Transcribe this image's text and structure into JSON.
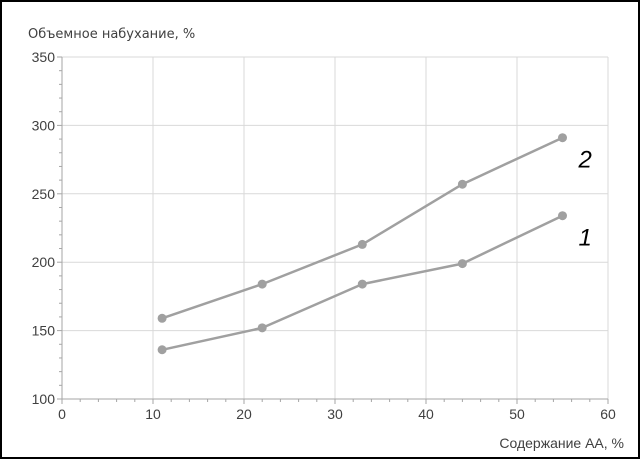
{
  "chart_data": {
    "type": "line",
    "ylabel": "Объемное набухание, %",
    "xlabel": "Содержание АА, %",
    "xlim": [
      0,
      60
    ],
    "ylim": [
      100,
      350
    ],
    "x_ticks": [
      "0",
      "10",
      "20",
      "30",
      "40",
      "50",
      "60"
    ],
    "y_ticks": [
      "100",
      "150",
      "200",
      "250",
      "300",
      "350"
    ],
    "grid": true,
    "colors": {
      "series": "#a0a0a0",
      "grid": "#d9d9d9",
      "axis": "#a6a6a6"
    },
    "series": [
      {
        "name": "2",
        "x": [
          11,
          22,
          33,
          44,
          55
        ],
        "y": [
          159,
          184,
          213,
          257,
          291
        ]
      },
      {
        "name": "1",
        "x": [
          11,
          22,
          33,
          44,
          55
        ],
        "y": [
          136,
          152,
          184,
          199,
          234
        ]
      }
    ]
  }
}
